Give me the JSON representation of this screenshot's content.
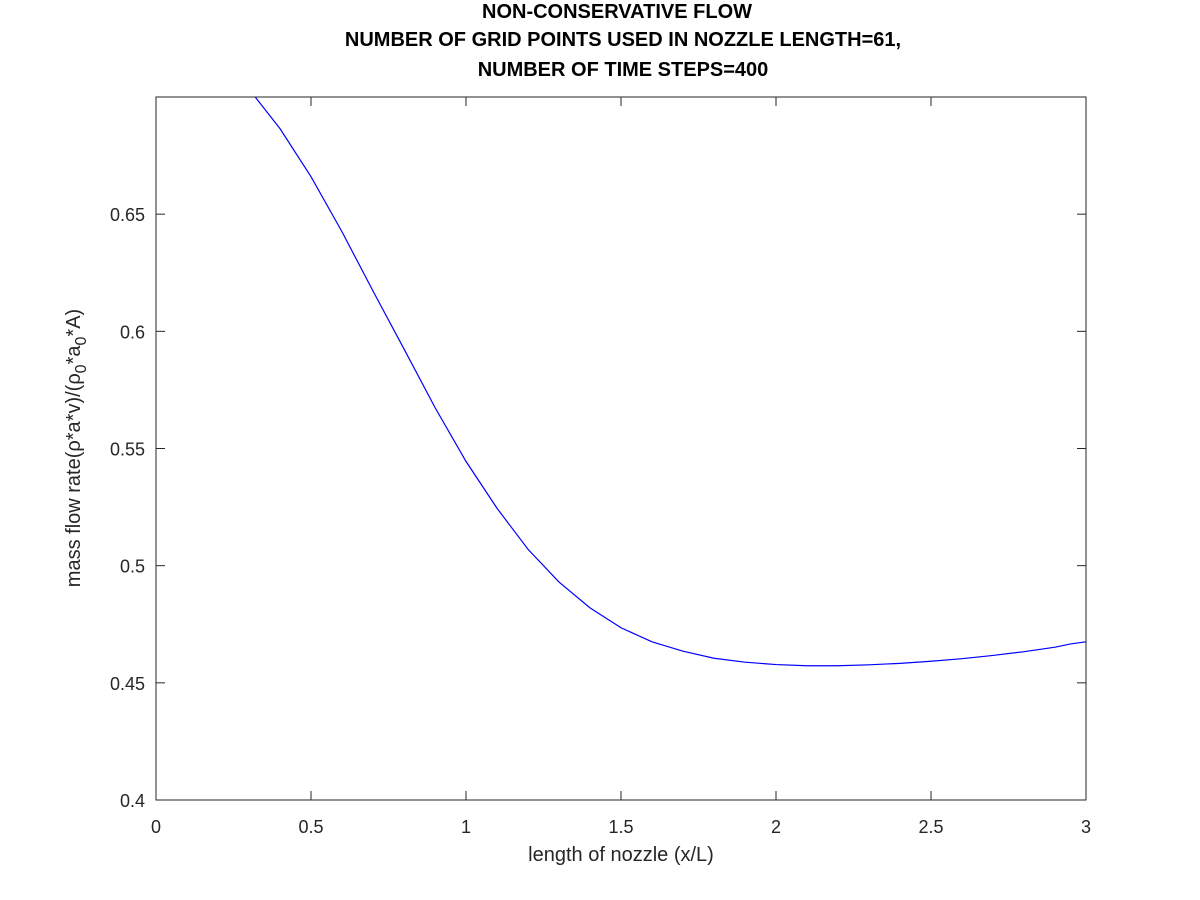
{
  "chart_data": {
    "type": "line",
    "title_lines": [
      "NON-CONSERVATIVE FLOW",
      "NUMBER OF GRID POINTS USED IN NOZZLE LENGTH=61,",
      "NUMBER OF TIME STEPS=400"
    ],
    "xlabel": "length of nozzle (x/L)",
    "ylabel": {
      "parts": [
        {
          "text": "mass flow rate(ρ*a*v)/(ρ",
          "sub": false
        },
        {
          "text": "0",
          "sub": true
        },
        {
          "text": "*a",
          "sub": false
        },
        {
          "text": "0",
          "sub": true
        },
        {
          "text": "*A)",
          "sub": false
        }
      ]
    },
    "xlim": [
      0,
      3
    ],
    "ylim": [
      0.4,
      0.7
    ],
    "xticks": [
      0,
      0.5,
      1,
      1.5,
      2,
      2.5,
      3
    ],
    "xtick_labels": [
      "0",
      "0.5",
      "1",
      "1.5",
      "2",
      "2.5",
      "3"
    ],
    "yticks": [
      0.4,
      0.45,
      0.5,
      0.55,
      0.6,
      0.65
    ],
    "ytick_labels": [
      "0.4",
      "0.45",
      "0.5",
      "0.55",
      "0.6",
      "0.65"
    ],
    "grid": false,
    "line_color": "#0000ff",
    "series": [
      {
        "x": [
          0.32,
          0.4,
          0.5,
          0.6,
          0.7,
          0.8,
          0.9,
          1.0,
          1.1,
          1.2,
          1.3,
          1.4,
          1.5,
          1.6,
          1.7,
          1.8,
          1.9,
          2.0,
          2.1,
          2.2,
          2.3,
          2.4,
          2.5,
          2.6,
          2.7,
          2.8,
          2.9,
          2.95,
          3.0
        ],
        "y": [
          0.7,
          0.6865,
          0.666,
          0.6425,
          0.6172,
          0.5925,
          0.5675,
          0.5445,
          0.5245,
          0.507,
          0.493,
          0.482,
          0.4735,
          0.4675,
          0.4635,
          0.4605,
          0.4588,
          0.4578,
          0.4573,
          0.4573,
          0.4577,
          0.4583,
          0.4592,
          0.4603,
          0.4617,
          0.4633,
          0.4652,
          0.4666,
          0.4675
        ]
      }
    ]
  }
}
